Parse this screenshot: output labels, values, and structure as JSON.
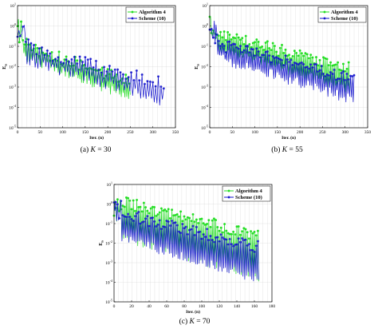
{
  "chart_data": [
    {
      "type": "line",
      "caption_prefix": "(a)",
      "caption_param": "K = 30",
      "xlabel": "Iter. (n)",
      "ylabel": "E_n",
      "xlim": [
        0,
        350
      ],
      "ylim_exp": [
        -5,
        1
      ],
      "xticks": [
        "0",
        "50",
        "100",
        "150",
        "200",
        "250",
        "300",
        "350"
      ],
      "yticks": [
        "10^-5",
        "10^-4",
        "10^-3",
        "10^-2",
        "10^-1",
        "10^0",
        "10^1"
      ],
      "legend_position": "top-right",
      "series": [
        {
          "name": "Algorithm 4",
          "color": "#22dd22",
          "marker": "circle",
          "n_iter": 250,
          "log_start": 0.4,
          "log_mid": -2.7,
          "log_end": -3.5,
          "upper_band": -2.1,
          "lower_band": -3.8
        },
        {
          "name": "Scheme (10)",
          "color": "#1111cc",
          "marker": "star",
          "n_iter": 325,
          "log_start": 0.3,
          "log_mid": -2.5,
          "log_end": -3.6,
          "upper_band": -2.2,
          "lower_band": -4.0
        }
      ]
    },
    {
      "type": "line",
      "caption_prefix": "(b)",
      "caption_param": "K = 55",
      "xlabel": "Iter. (n)",
      "ylabel": "E_n",
      "xlim": [
        0,
        350
      ],
      "ylim_exp": [
        -5,
        1
      ],
      "xticks": [
        "0",
        "50",
        "100",
        "150",
        "200",
        "250",
        "300",
        "350"
      ],
      "yticks": [
        "10^-5",
        "10^-4",
        "10^-3",
        "10^-2",
        "10^-1",
        "10^0",
        "10^1"
      ],
      "legend_position": "top-right",
      "series": [
        {
          "name": "Algorithm 4",
          "color": "#22dd22",
          "marker": "circle",
          "n_iter": 310,
          "log_start": 0.5,
          "log_mid": -2.0,
          "log_end": -2.8,
          "upper_band": -1.5,
          "lower_band": -3.4
        },
        {
          "name": "Scheme (10)",
          "color": "#1111cc",
          "marker": "star",
          "n_iter": 320,
          "log_start": 0.3,
          "log_mid": -2.3,
          "log_end": -3.3,
          "upper_band": -2.0,
          "lower_band": -3.9
        }
      ]
    },
    {
      "type": "line",
      "caption_prefix": "(c)",
      "caption_param": "K = 70",
      "xlabel": "Iter. (n)",
      "ylabel": "E_n",
      "xlim": [
        0,
        180
      ],
      "ylim_exp": [
        -5,
        1
      ],
      "xticks": [
        "0",
        "20",
        "40",
        "60",
        "80",
        "100",
        "120",
        "140",
        "160",
        "180"
      ],
      "yticks": [
        "10^-5",
        "10^-4",
        "10^-3",
        "10^-2",
        "10^-1",
        "10^0",
        "10^1"
      ],
      "legend_position": "top-right",
      "series": [
        {
          "name": "Algorithm 4",
          "color": "#22dd22",
          "marker": "circle",
          "n_iter": 165,
          "log_start": 0.3,
          "log_mid": -2.0,
          "log_end": -3.8,
          "upper_band": -1.0,
          "lower_band": -4.0
        },
        {
          "name": "Scheme (10)",
          "color": "#1111cc",
          "marker": "star",
          "n_iter": 165,
          "log_start": 0.2,
          "log_mid": -2.2,
          "log_end": -4.0,
          "upper_band": -1.6,
          "lower_band": -4.1
        }
      ]
    }
  ]
}
